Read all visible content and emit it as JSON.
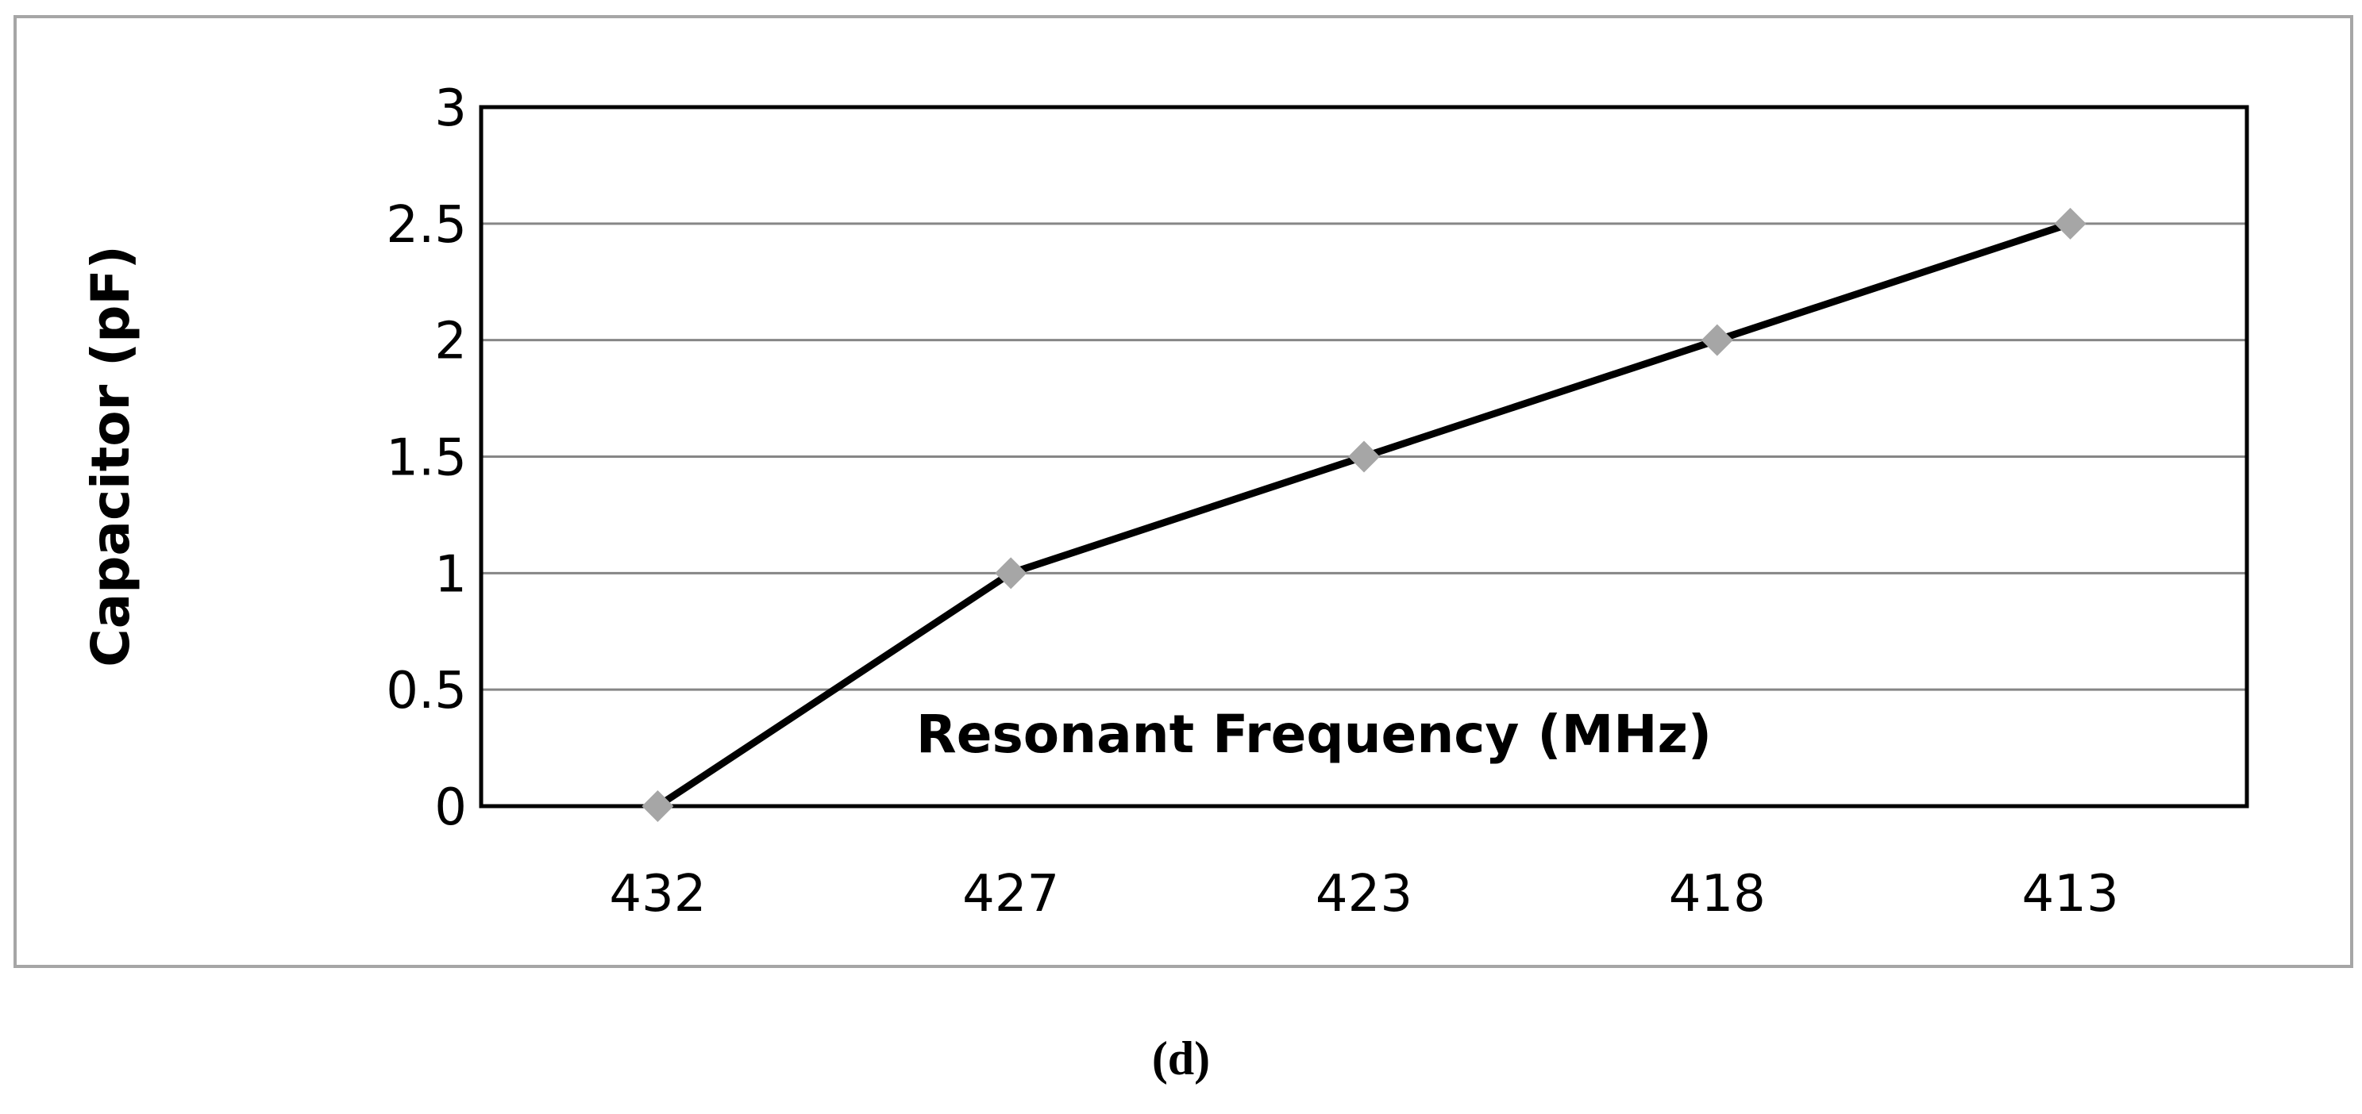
{
  "chart_data": {
    "type": "line",
    "title": "",
    "xlabel": "Resonant Frequency (MHz)",
    "ylabel": "Capacitor (pF)",
    "categories": [
      "432",
      "427",
      "423",
      "418",
      "413"
    ],
    "series": [
      {
        "values": [
          0,
          1,
          1.5,
          2,
          2.5
        ]
      }
    ],
    "ylim": [
      0,
      3
    ],
    "yticks": [
      "0",
      "0.5",
      "1",
      "1.5",
      "2",
      "2.5",
      "3"
    ],
    "grid": true,
    "legend": "none",
    "colors": {
      "line": "#000000",
      "marker": "#a6a6a6",
      "grid": "#868686",
      "frame": "#a6a6a6"
    }
  },
  "caption": "(d)"
}
